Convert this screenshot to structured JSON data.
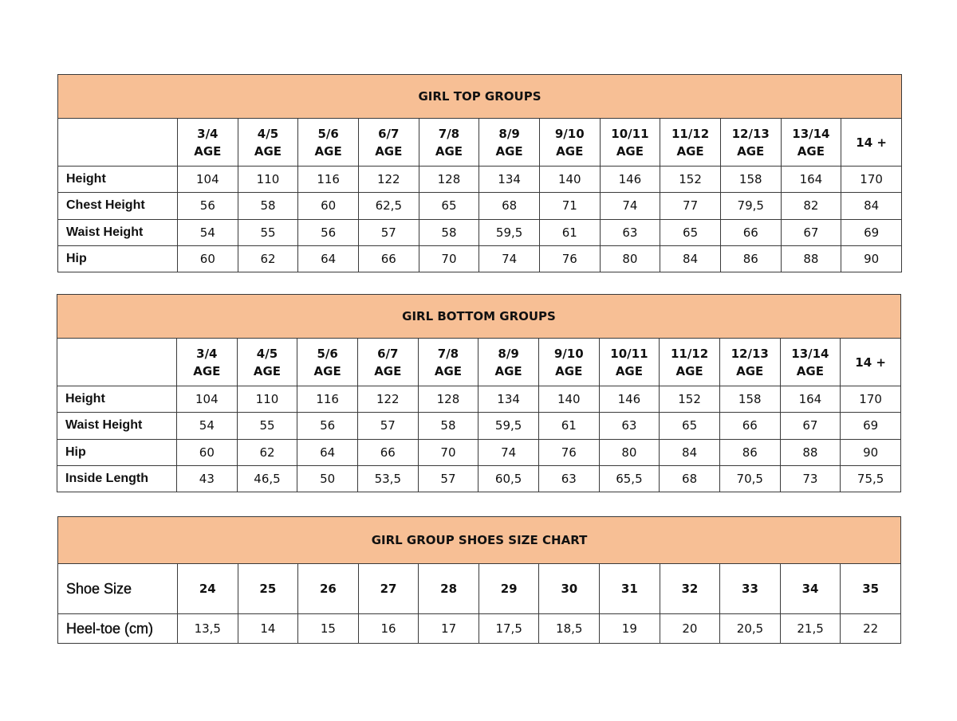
{
  "colors": {
    "header_fill": "#f7bf95",
    "border": "#3a3a3a"
  },
  "top": {
    "title": "GIRL TOP GROUPS",
    "columns": [
      [
        "3/4",
        "AGE"
      ],
      [
        "4/5",
        "AGE"
      ],
      [
        "5/6",
        "AGE"
      ],
      [
        "6/7",
        "AGE"
      ],
      [
        "7/8",
        "AGE"
      ],
      [
        "8/9",
        "AGE"
      ],
      [
        "9/10",
        "AGE"
      ],
      [
        "10/11",
        "AGE"
      ],
      [
        "11/12",
        "AGE"
      ],
      [
        "12/13",
        "AGE"
      ],
      [
        "13/14",
        "AGE"
      ],
      [
        "14 +",
        ""
      ]
    ],
    "rows": [
      {
        "label": "Height",
        "values": [
          "104",
          "110",
          "116",
          "122",
          "128",
          "134",
          "140",
          "146",
          "152",
          "158",
          "164",
          "170"
        ]
      },
      {
        "label": "Chest Height",
        "values": [
          "56",
          "58",
          "60",
          "62,5",
          "65",
          "68",
          "71",
          "74",
          "77",
          "79,5",
          "82",
          "84"
        ]
      },
      {
        "label": "Waist Height",
        "values": [
          "54",
          "55",
          "56",
          "57",
          "58",
          "59,5",
          "61",
          "63",
          "65",
          "66",
          "67",
          "69"
        ]
      },
      {
        "label": "Hip",
        "values": [
          "60",
          "62",
          "64",
          "66",
          "70",
          "74",
          "76",
          "80",
          "84",
          "86",
          "88",
          "90"
        ]
      }
    ]
  },
  "bottom": {
    "title": "GIRL BOTTOM GROUPS",
    "columns": [
      [
        "3/4",
        "AGE"
      ],
      [
        "4/5",
        "AGE"
      ],
      [
        "5/6",
        "AGE"
      ],
      [
        "6/7",
        "AGE"
      ],
      [
        "7/8",
        "AGE"
      ],
      [
        "8/9",
        "AGE"
      ],
      [
        "9/10",
        "AGE"
      ],
      [
        "10/11",
        "AGE"
      ],
      [
        "11/12",
        "AGE"
      ],
      [
        "12/13",
        "AGE"
      ],
      [
        "13/14",
        "AGE"
      ],
      [
        "14 +",
        ""
      ]
    ],
    "rows": [
      {
        "label": "Height",
        "values": [
          "104",
          "110",
          "116",
          "122",
          "128",
          "134",
          "140",
          "146",
          "152",
          "158",
          "164",
          "170"
        ]
      },
      {
        "label": "Waist Height",
        "values": [
          "54",
          "55",
          "56",
          "57",
          "58",
          "59,5",
          "61",
          "63",
          "65",
          "66",
          "67",
          "69"
        ]
      },
      {
        "label": "Hip",
        "values": [
          "60",
          "62",
          "64",
          "66",
          "70",
          "74",
          "76",
          "80",
          "84",
          "86",
          "88",
          "90"
        ]
      },
      {
        "label": "Inside Length",
        "values": [
          "43",
          "46,5",
          "50",
          "53,5",
          "57",
          "60,5",
          "63",
          "65,5",
          "68",
          "70,5",
          "73",
          "75,5"
        ]
      }
    ]
  },
  "shoes": {
    "title": "GIRL GROUP SHOES SIZE CHART",
    "size_label": "Shoe Size",
    "sizes": [
      "24",
      "25",
      "26",
      "27",
      "28",
      "29",
      "30",
      "31",
      "32",
      "33",
      "34",
      "35"
    ],
    "rows": [
      {
        "label": "Heel-toe (cm)",
        "values": [
          "13,5",
          "14",
          "15",
          "16",
          "17",
          "17,5",
          "18,5",
          "19",
          "20",
          "20,5",
          "21,5",
          "22"
        ]
      }
    ]
  }
}
